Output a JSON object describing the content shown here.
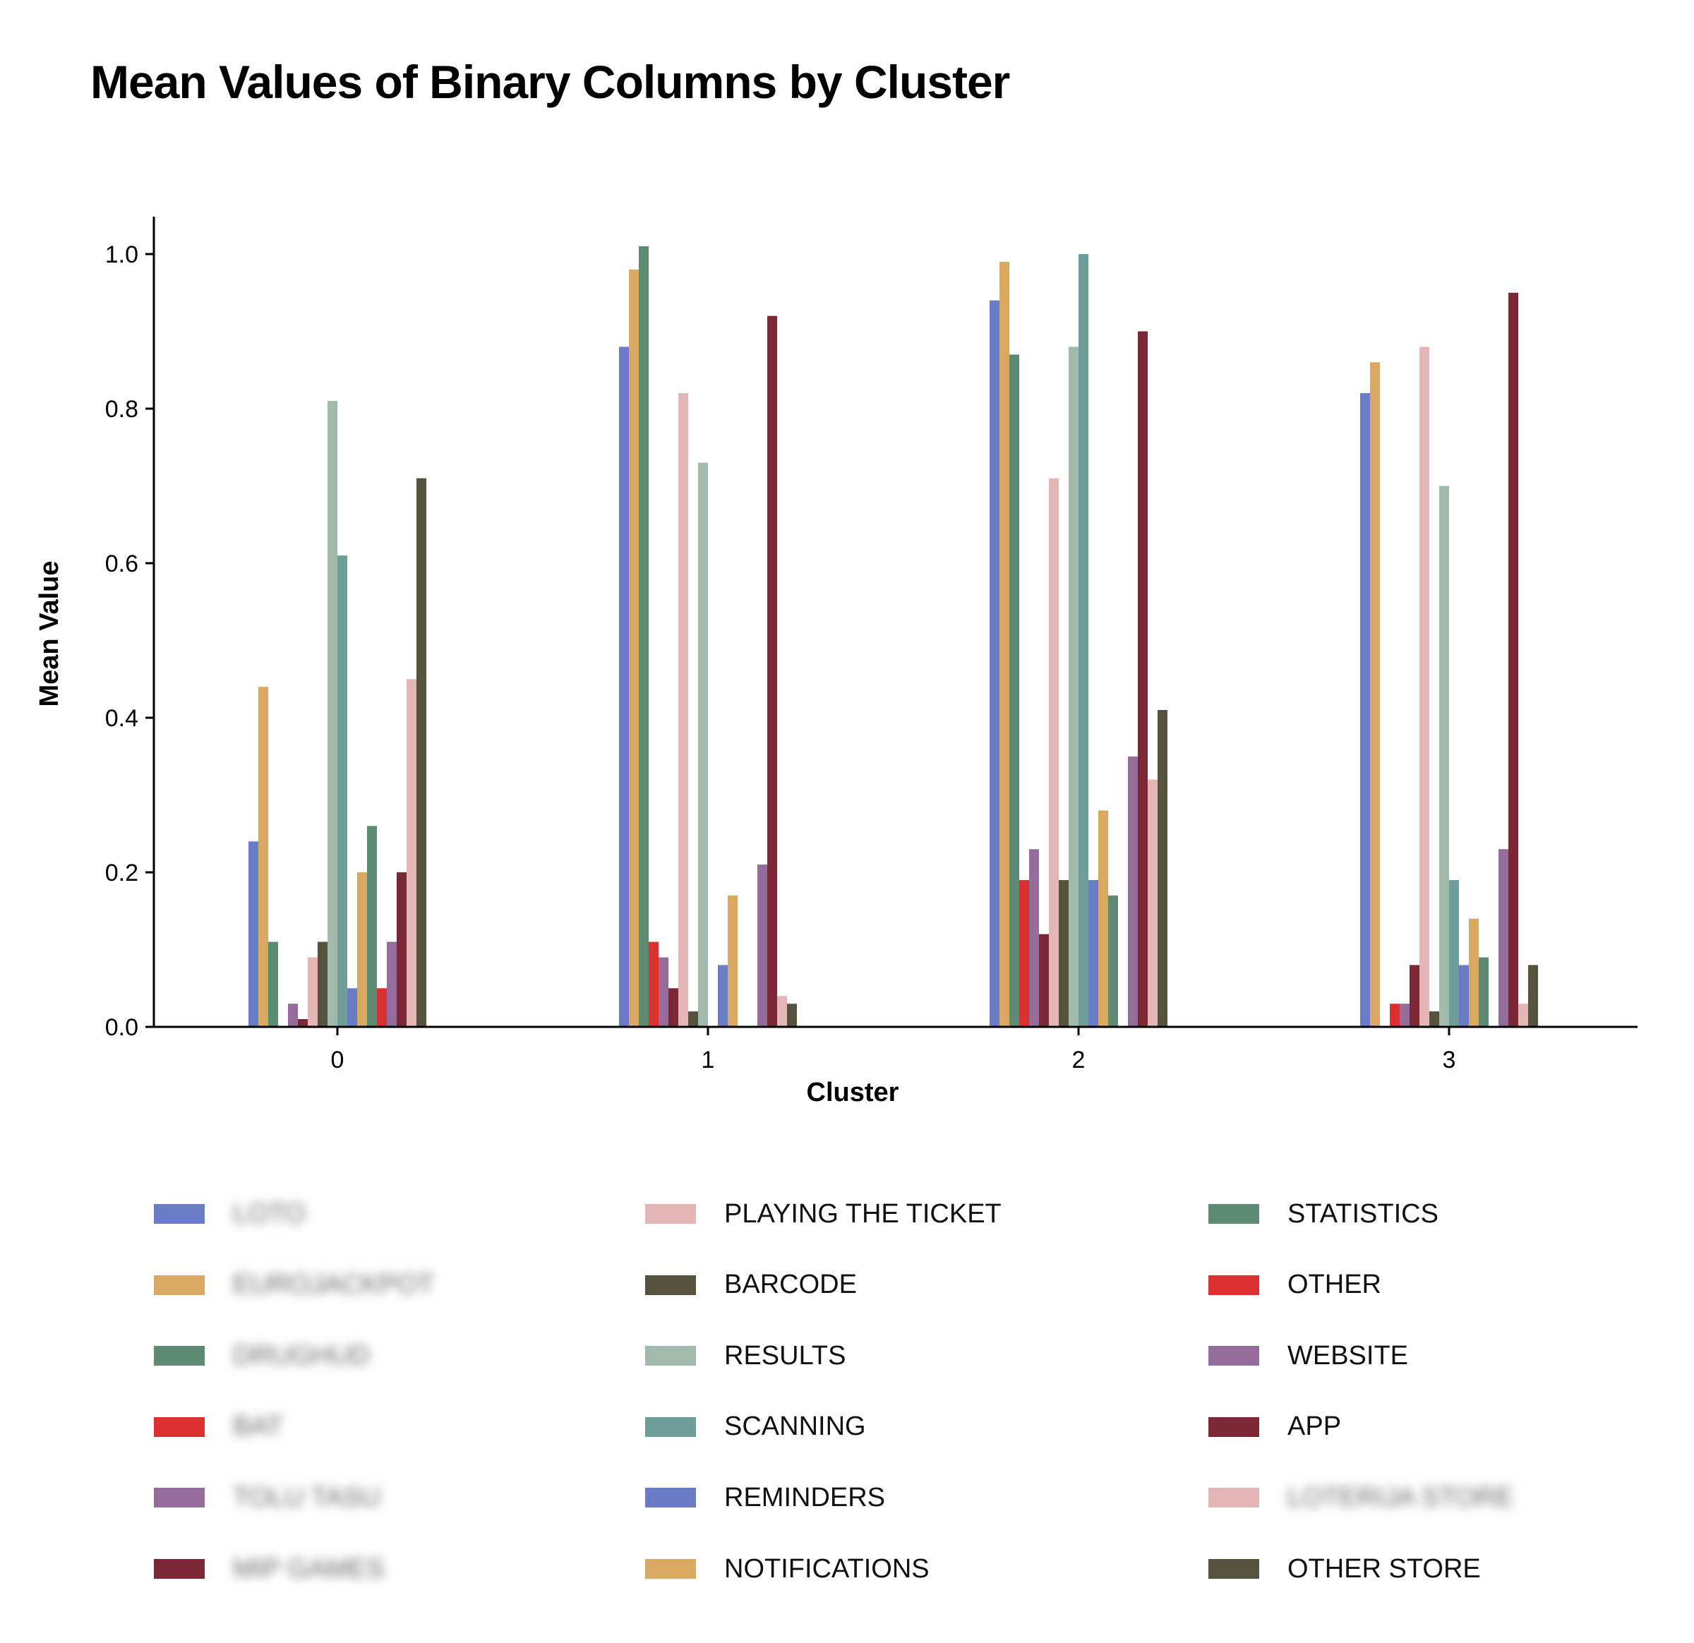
{
  "title": "Mean Values of Binary Columns by Cluster",
  "chart_data": {
    "type": "bar",
    "title": "Mean Values of Binary Columns by Cluster",
    "xlabel": "Cluster",
    "ylabel": "Mean Value",
    "categories": [
      "0",
      "1",
      "2",
      "3"
    ],
    "ylim": [
      0,
      1.05
    ],
    "yticks": [
      "0.0",
      "0.2",
      "0.4",
      "0.6",
      "0.8",
      "1.0"
    ],
    "grid": false,
    "legend_position": "bottom",
    "series": [
      {
        "name": "LOTO",
        "color": "#6a7bc8",
        "blurred": true,
        "values": [
          0.24,
          0.88,
          0.94,
          0.82
        ]
      },
      {
        "name": "EUROJACKPOT",
        "color": "#d9a962",
        "blurred": true,
        "values": [
          0.44,
          0.98,
          0.99,
          0.86
        ]
      },
      {
        "name": "DRUGHUD",
        "color": "#5c8a72",
        "blurred": true,
        "values": [
          0.11,
          1.01,
          0.87,
          0.0
        ]
      },
      {
        "name": "BAT",
        "color": "#dc2f2f",
        "blurred": true,
        "values": [
          0.0,
          0.11,
          0.19,
          0.03
        ]
      },
      {
        "name": "TOLU TASU",
        "color": "#946c9c",
        "blurred": true,
        "values": [
          0.03,
          0.09,
          0.23,
          0.03
        ]
      },
      {
        "name": "MIP GAMES",
        "color": "#7c2736",
        "blurred": true,
        "values": [
          0.01,
          0.05,
          0.12,
          0.08
        ]
      },
      {
        "name": "PLAYING THE TICKET",
        "color": "#e4b6b6",
        "blurred": false,
        "values": [
          0.09,
          0.82,
          0.71,
          0.88
        ]
      },
      {
        "name": "BARCODE",
        "color": "#55523e",
        "blurred": false,
        "values": [
          0.11,
          0.02,
          0.19,
          0.02
        ]
      },
      {
        "name": "RESULTS",
        "color": "#a1baac",
        "blurred": false,
        "values": [
          0.81,
          0.73,
          0.88,
          0.7
        ]
      },
      {
        "name": "SCANNING",
        "color": "#6d9e98",
        "blurred": false,
        "values": [
          0.61,
          0.0,
          1.0,
          0.19
        ]
      },
      {
        "name": "REMINDERS",
        "color": "#6a7bc8",
        "blurred": false,
        "values": [
          0.05,
          0.08,
          0.19,
          0.08
        ]
      },
      {
        "name": "NOTIFICATIONS",
        "color": "#d9a962",
        "blurred": false,
        "values": [
          0.2,
          0.17,
          0.28,
          0.14
        ]
      },
      {
        "name": "STATISTICS",
        "color": "#5c8a72",
        "blurred": false,
        "values": [
          0.26,
          0.0,
          0.17,
          0.09
        ]
      },
      {
        "name": "OTHER",
        "color": "#dc2f2f",
        "blurred": false,
        "values": [
          0.05,
          0.0,
          0.0,
          0.0
        ]
      },
      {
        "name": "WEBSITE",
        "color": "#946c9c",
        "blurred": false,
        "values": [
          0.11,
          0.21,
          0.35,
          0.23
        ]
      },
      {
        "name": "APP",
        "color": "#7c2736",
        "blurred": false,
        "values": [
          0.2,
          0.92,
          0.9,
          0.95
        ]
      },
      {
        "name": "LOTERIJA STORE",
        "color": "#e4b6b6",
        "blurred": true,
        "values": [
          0.45,
          0.04,
          0.32,
          0.03
        ]
      },
      {
        "name": "OTHER STORE",
        "color": "#55523e",
        "blurred": false,
        "values": [
          0.71,
          0.03,
          0.41,
          0.08
        ]
      }
    ]
  }
}
